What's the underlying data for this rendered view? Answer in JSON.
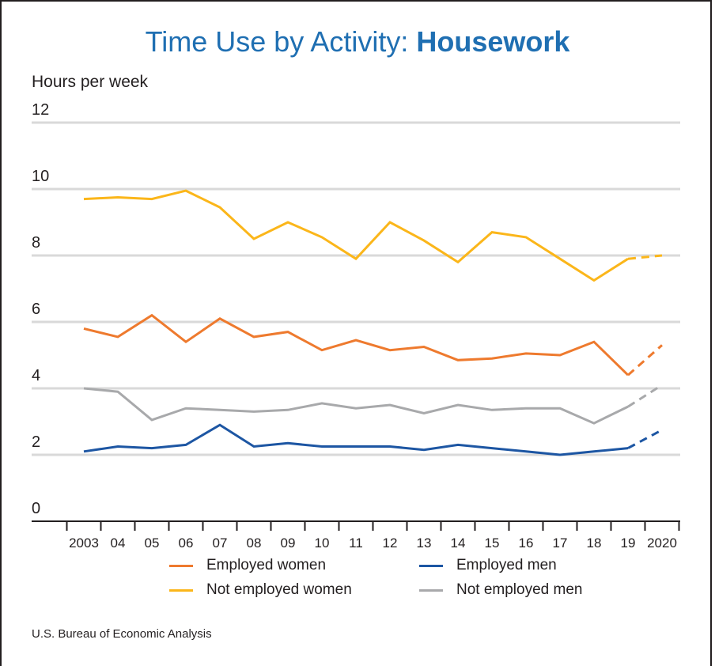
{
  "title_regular": "Time Use by Activity: ",
  "title_bold": "Housework",
  "unit_label": "Hours per week",
  "source": "U.S. Bureau of Economic Analysis",
  "colors": {
    "employed_women": "#ee7a2e",
    "not_employed_women": "#fbb61a",
    "employed_men": "#1d56a3",
    "not_employed_men": "#a8a9ab",
    "grid": "#d9d9d9",
    "axis": "#231f20"
  },
  "chart_data": {
    "type": "line",
    "title": "Time Use by Activity: Housework",
    "ylabel": "Hours per week",
    "ylim": [
      0,
      12
    ],
    "yticks": [
      0,
      2,
      4,
      6,
      8,
      10,
      12
    ],
    "grid": true,
    "legend_position": "bottom",
    "x_labels": [
      "2003",
      "04",
      "05",
      "06",
      "07",
      "08",
      "09",
      "10",
      "11",
      "12",
      "13",
      "14",
      "15",
      "16",
      "17",
      "18",
      "19",
      "2020"
    ],
    "note": "2020 segment shown dashed",
    "series": [
      {
        "name": "Employed women",
        "color_key": "employed_women",
        "values": [
          5.8,
          5.55,
          6.2,
          5.4,
          6.1,
          5.55,
          5.7,
          5.15,
          5.45,
          5.15,
          5.25,
          4.85,
          4.9,
          5.05,
          5.0,
          5.4,
          4.4,
          5.3
        ]
      },
      {
        "name": "Not employed women",
        "color_key": "not_employed_women",
        "values": [
          9.7,
          9.75,
          9.7,
          9.95,
          9.45,
          8.5,
          9.0,
          8.55,
          7.9,
          9.0,
          8.45,
          7.8,
          8.7,
          8.55,
          7.9,
          7.25,
          7.9,
          8.0
        ]
      },
      {
        "name": "Employed men",
        "color_key": "employed_men",
        "values": [
          2.1,
          2.25,
          2.2,
          2.3,
          2.9,
          2.25,
          2.35,
          2.25,
          2.25,
          2.25,
          2.15,
          2.3,
          2.2,
          2.1,
          2.0,
          2.1,
          2.2,
          2.75
        ]
      },
      {
        "name": "Not employed men",
        "color_key": "not_employed_men",
        "values": [
          4.0,
          3.9,
          3.05,
          3.4,
          3.35,
          3.3,
          3.35,
          3.55,
          3.4,
          3.5,
          3.25,
          3.5,
          3.35,
          3.4,
          3.4,
          2.95,
          3.45,
          4.1
        ]
      }
    ]
  },
  "legend": [
    {
      "label": "Employed women",
      "color_key": "employed_women"
    },
    {
      "label": "Employed men",
      "color_key": "employed_men"
    },
    {
      "label": "Not employed women",
      "color_key": "not_employed_women"
    },
    {
      "label": "Not employed men",
      "color_key": "not_employed_men"
    }
  ]
}
